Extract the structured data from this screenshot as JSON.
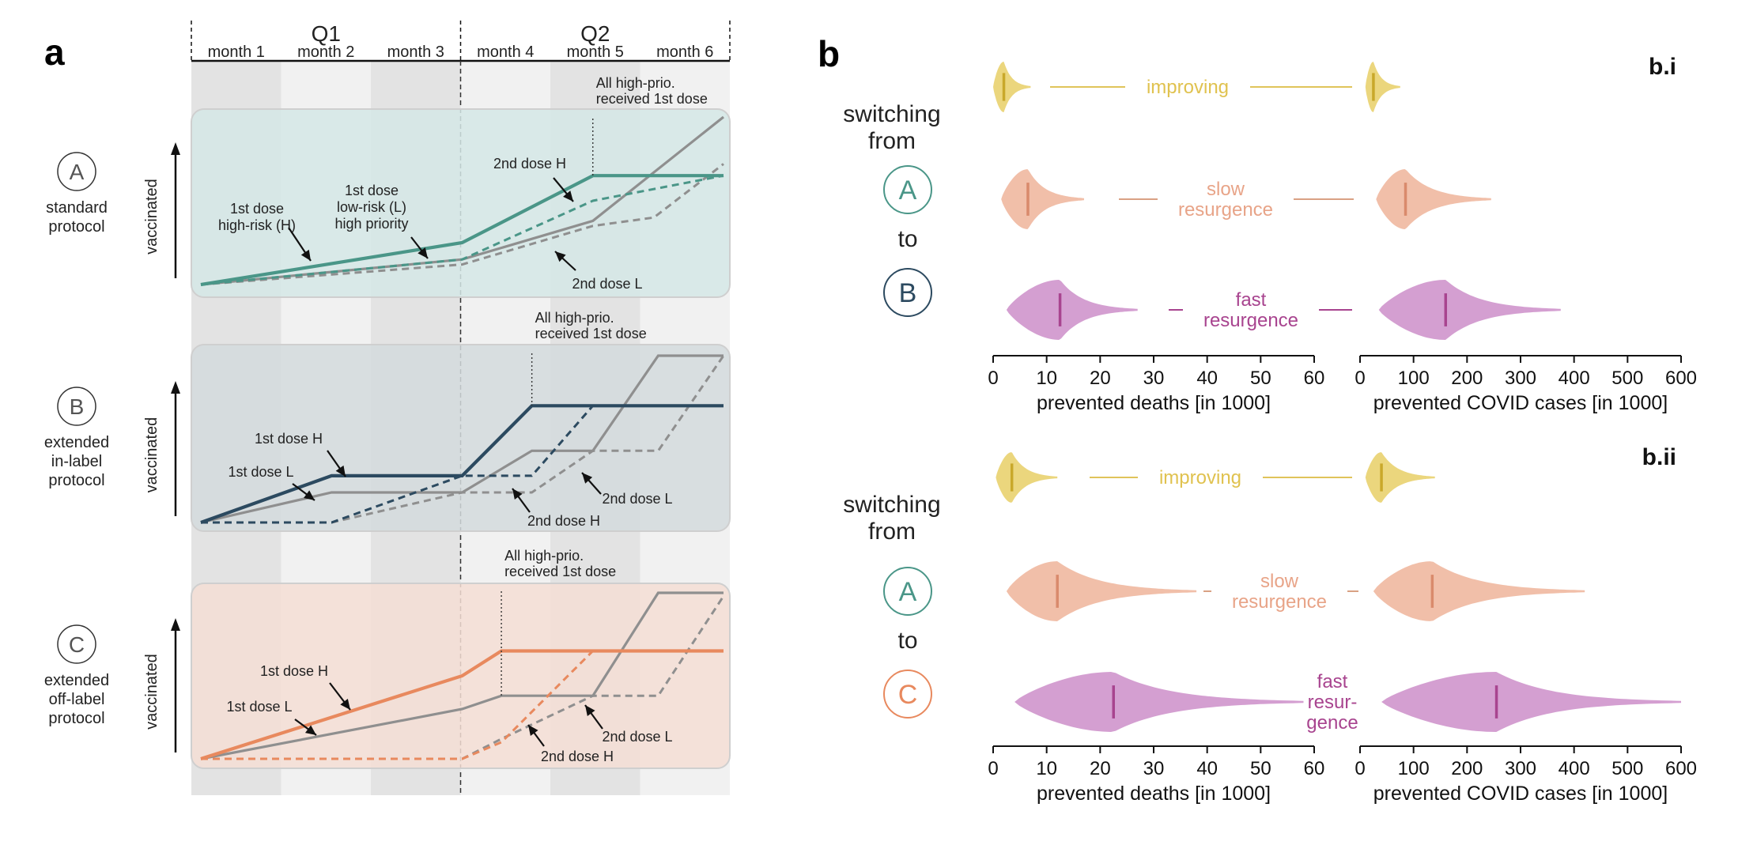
{
  "panel_a": {
    "letter": "a",
    "quarters": [
      "Q1",
      "Q2"
    ],
    "months": [
      "month 1",
      "month 2",
      "month 3",
      "month 4",
      "month 5",
      "month 6"
    ],
    "vaccinated_label": "vaccinated",
    "protocols": [
      {
        "key": "A",
        "name_lines": [
          "standard",
          "protocol"
        ],
        "color": "#4a9688",
        "bg": "#d5e8e6",
        "high_prio_note": [
          "All high-prio.",
          "received 1st dose"
        ],
        "labels": {
          "first_h": [
            "1st dose",
            "high-risk (H)"
          ],
          "first_l": [
            "1st dose",
            "low-risk (L)",
            "high priority"
          ],
          "second_h": [
            "2nd dose H"
          ],
          "second_l": [
            "2nd dose L"
          ]
        },
        "series": {
          "first_h": [
            [
              0,
              0
            ],
            [
              3,
              0.25
            ],
            [
              4.5,
              0.65
            ],
            [
              6,
              0.65
            ]
          ],
          "second_h": [
            [
              0,
              0
            ],
            [
              3,
              0.15
            ],
            [
              4.5,
              0.5
            ],
            [
              6,
              0.65
            ]
          ],
          "first_l": [
            [
              0,
              0
            ],
            [
              3,
              0.15
            ],
            [
              4.5,
              0.38
            ],
            [
              6,
              1.0
            ]
          ],
          "second_l": [
            [
              0,
              0
            ],
            [
              3,
              0.12
            ],
            [
              4.5,
              0.35
            ],
            [
              5.2,
              0.4
            ],
            [
              6,
              0.72
            ]
          ]
        }
      },
      {
        "key": "B",
        "name_lines": [
          "extended",
          "in-label",
          "protocol"
        ],
        "color": "#2c4a60",
        "bg": "#d3dbdd",
        "high_prio_note": [
          "All high-prio.",
          "received 1st dose"
        ],
        "labels": {
          "first_h": [
            "1st dose H"
          ],
          "first_l": [
            "1st dose L"
          ],
          "second_h": [
            "2nd dose H"
          ],
          "second_l": [
            "2nd dose L"
          ]
        },
        "series": {
          "first_h": [
            [
              0,
              0
            ],
            [
              1.5,
              0.28
            ],
            [
              3,
              0.28
            ],
            [
              3.8,
              0.7
            ],
            [
              6,
              0.7
            ]
          ],
          "second_h": [
            [
              0,
              0
            ],
            [
              1.5,
              0
            ],
            [
              3,
              0.28
            ],
            [
              3.8,
              0.28
            ],
            [
              4.5,
              0.7
            ]
          ],
          "first_l": [
            [
              0,
              0
            ],
            [
              1.5,
              0.18
            ],
            [
              3,
              0.18
            ],
            [
              3.8,
              0.43
            ],
            [
              4.5,
              0.43
            ],
            [
              5.25,
              1.0
            ],
            [
              6,
              1.0
            ]
          ],
          "second_l": [
            [
              0,
              0
            ],
            [
              1.5,
              0
            ],
            [
              3,
              0.18
            ],
            [
              3.8,
              0.18
            ],
            [
              4.5,
              0.43
            ],
            [
              5.25,
              0.43
            ],
            [
              6,
              1.0
            ]
          ]
        }
      },
      {
        "key": "C",
        "name_lines": [
          "extended",
          "off-label",
          "protocol"
        ],
        "color": "#e8895e",
        "bg": "#f4ded5",
        "high_prio_note": [
          "All high-prio.",
          "received 1st dose"
        ],
        "labels": {
          "first_h": [
            "1st dose H"
          ],
          "first_l": [
            "1st dose L"
          ],
          "second_h": [
            "2nd dose H"
          ],
          "second_l": [
            "2nd dose L"
          ]
        },
        "series": {
          "first_h": [
            [
              0,
              0
            ],
            [
              3,
              0.5
            ],
            [
              3.45,
              0.65
            ],
            [
              6,
              0.65
            ]
          ],
          "second_h": [
            [
              0,
              0
            ],
            [
              3,
              0
            ],
            [
              3.45,
              0.1
            ],
            [
              4.5,
              0.65
            ]
          ],
          "first_l": [
            [
              0,
              0
            ],
            [
              3,
              0.3
            ],
            [
              3.45,
              0.38
            ],
            [
              4.5,
              0.38
            ],
            [
              5.25,
              1.0
            ],
            [
              6,
              1.0
            ]
          ],
          "second_l": [
            [
              0,
              0
            ],
            [
              3,
              0
            ],
            [
              3.45,
              0.12
            ],
            [
              4.5,
              0.38
            ],
            [
              5.25,
              0.38
            ],
            [
              6,
              0.98
            ]
          ]
        }
      }
    ]
  },
  "panel_b": {
    "letter": "b",
    "switching_from": [
      "switching",
      "from"
    ],
    "to": "to",
    "scenarios": [
      {
        "name": "improving",
        "color": "#e8cf66",
        "lines": [
          "improving"
        ]
      },
      {
        "name": "slow resurgence",
        "color": "#efb49a",
        "lines": [
          "slow",
          "resurgence"
        ]
      },
      {
        "name": "fast resurgence",
        "color": "#cc8ec9",
        "median_color": "#a8448f"
      }
    ],
    "subpanels": [
      {
        "id": "b.i",
        "target": "B",
        "target_color": "#2c4a60",
        "fast_lines": [
          "fast",
          "resurgence"
        ]
      },
      {
        "id": "b.ii",
        "target": "C",
        "target_color": "#e8895e",
        "fast_lines": [
          "fast",
          "resur-",
          "gence"
        ]
      }
    ],
    "from_protocol": "A",
    "from_color": "#4a9688",
    "deaths_axis": {
      "label": "prevented deaths [in 1000]",
      "ticks": [
        0,
        10,
        20,
        30,
        40,
        50,
        60
      ]
    },
    "cases_axis": {
      "label": "prevented COVID cases [in 1000]",
      "ticks": [
        0,
        100,
        200,
        300,
        400,
        500,
        600
      ]
    }
  },
  "chart_data": [
    {
      "type": "line",
      "title": "",
      "xlabel": "",
      "ylabel": "vaccinated",
      "categories": [
        "month 1",
        "month 2",
        "month 3",
        "month 4",
        "month 5",
        "month 6"
      ],
      "note": "schematic (qualitative) vaccination curves; x in months from start (0-6), y relative (0-1)",
      "panels": [
        "A standard protocol",
        "B extended in-label protocol",
        "C extended off-label protocol"
      ]
    },
    {
      "type": "violin",
      "title": "b.i",
      "groups": [
        {
          "scenario": "improving",
          "deaths_median": 2,
          "deaths_range": [
            0,
            7
          ],
          "cases_median": 25,
          "cases_range": [
            10,
            75
          ]
        },
        {
          "scenario": "slow resurgence",
          "deaths_median": 6.5,
          "deaths_range": [
            1.5,
            17
          ],
          "cases_median": 85,
          "cases_range": [
            30,
            245
          ]
        },
        {
          "scenario": "fast resurgence",
          "deaths_median": 12.5,
          "deaths_range": [
            2.5,
            27
          ],
          "cases_median": 160,
          "cases_range": [
            35,
            375
          ]
        }
      ],
      "x_axes": [
        "prevented deaths [in 1000]",
        "prevented COVID cases [in 1000]"
      ]
    },
    {
      "type": "violin",
      "title": "b.ii",
      "groups": [
        {
          "scenario": "improving",
          "deaths_median": 3.5,
          "deaths_range": [
            0.5,
            12
          ],
          "cases_median": 40,
          "cases_range": [
            10,
            140
          ]
        },
        {
          "scenario": "slow resurgence",
          "deaths_median": 12,
          "deaths_range": [
            2.5,
            38
          ],
          "cases_median": 135,
          "cases_range": [
            25,
            420
          ]
        },
        {
          "scenario": "fast resurgence",
          "deaths_median": 22.5,
          "deaths_range": [
            4,
            58
          ],
          "cases_median": 255,
          "cases_range": [
            40,
            600
          ]
        }
      ],
      "x_axes": [
        "prevented deaths [in 1000]",
        "prevented COVID cases [in 1000]"
      ]
    }
  ]
}
